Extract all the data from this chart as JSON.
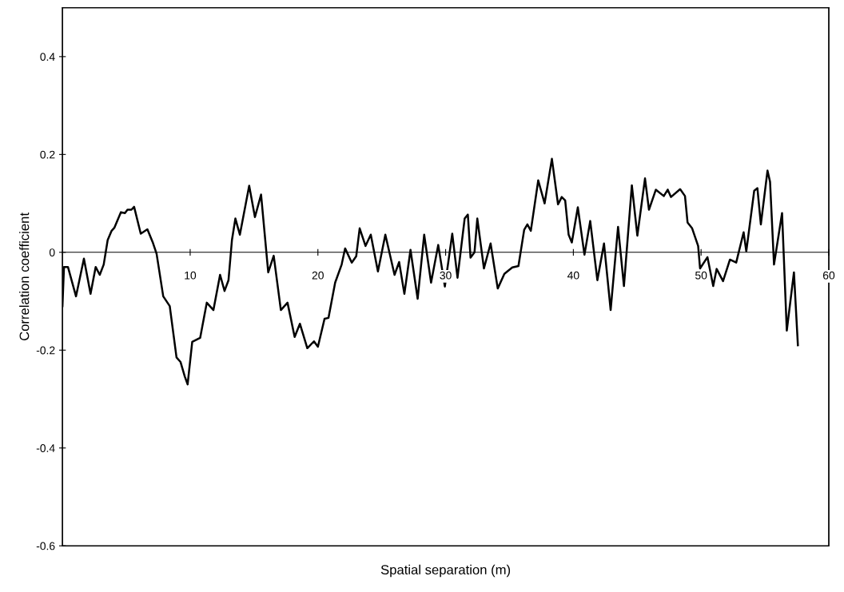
{
  "chart_data": {
    "type": "line",
    "xlabel": "Spatial separation (m)",
    "ylabel": "Correlation coefficient",
    "xlim": [
      0,
      60
    ],
    "ylim": [
      -0.6,
      0.5
    ],
    "xticks": [
      10,
      20,
      30,
      40,
      50,
      60
    ],
    "yticks": [
      -0.6,
      -0.4,
      -0.2,
      0,
      0.2,
      0.4
    ],
    "grid": false,
    "legend": false,
    "marker": "none",
    "line_style": "solid",
    "series": [
      {
        "color": "#000000",
        "x": [
          0.0,
          0.12,
          0.43,
          1.06,
          1.68,
          2.2,
          2.6,
          2.92,
          3.23,
          3.54,
          3.85,
          4.06,
          4.58,
          4.89,
          5.09,
          5.4,
          5.61,
          6.13,
          6.65,
          7.06,
          7.37,
          7.89,
          8.4,
          8.93,
          9.24,
          9.58,
          9.8,
          10.16,
          10.78,
          11.3,
          11.82,
          12.34,
          12.69,
          13.0,
          13.27,
          13.54,
          13.89,
          14.62,
          15.07,
          15.55,
          16.11,
          16.54,
          17.1,
          17.62,
          18.18,
          18.59,
          19.17,
          19.69,
          20.0,
          20.52,
          20.83,
          21.35,
          21.86,
          22.13,
          22.65,
          23.0,
          23.27,
          23.73,
          24.14,
          24.7,
          25.28,
          26.0,
          26.36,
          26.77,
          27.25,
          27.81,
          28.32,
          28.86,
          29.42,
          29.94,
          30.52,
          30.93,
          31.49,
          31.74,
          31.95,
          32.26,
          32.48,
          33.0,
          33.52,
          34.08,
          34.6,
          35.22,
          35.7,
          36.15,
          36.4,
          36.67,
          37.25,
          37.75,
          38.32,
          38.8,
          39.09,
          39.36,
          39.63,
          39.88,
          40.35,
          40.87,
          41.32,
          41.88,
          42.4,
          42.92,
          43.5,
          43.96,
          44.58,
          45.01,
          45.61,
          45.92,
          46.46,
          47.08,
          47.39,
          47.64,
          48.36,
          48.74,
          48.94,
          49.3,
          49.77,
          49.92,
          50.5,
          50.95,
          51.22,
          51.72,
          52.26,
          52.75,
          53.33,
          53.54,
          54.16,
          54.41,
          54.68,
          55.2,
          55.4,
          55.71,
          56.34,
          56.71,
          57.27,
          57.58
        ],
        "values": [
          -0.11,
          -0.03,
          -0.03,
          -0.09,
          -0.013,
          -0.085,
          -0.03,
          -0.046,
          -0.025,
          0.025,
          0.044,
          0.05,
          0.082,
          0.08,
          0.087,
          0.087,
          0.093,
          0.038,
          0.047,
          0.021,
          -0.003,
          -0.09,
          -0.11,
          -0.215,
          -0.224,
          -0.254,
          -0.27,
          -0.183,
          -0.175,
          -0.103,
          -0.118,
          -0.046,
          -0.079,
          -0.057,
          0.025,
          0.069,
          0.036,
          0.136,
          0.072,
          0.118,
          -0.041,
          -0.007,
          -0.118,
          -0.103,
          -0.173,
          -0.146,
          -0.196,
          -0.182,
          -0.193,
          -0.136,
          -0.134,
          -0.062,
          -0.025,
          0.008,
          -0.021,
          -0.008,
          0.049,
          0.013,
          0.036,
          -0.039,
          0.036,
          -0.046,
          -0.02,
          -0.085,
          0.005,
          -0.095,
          0.036,
          -0.062,
          0.015,
          -0.07,
          0.038,
          -0.052,
          0.069,
          0.077,
          -0.011,
          0.0,
          0.069,
          -0.033,
          0.018,
          -0.074,
          -0.044,
          -0.031,
          -0.028,
          0.046,
          0.057,
          0.044,
          0.147,
          0.1,
          0.191,
          0.098,
          0.113,
          0.106,
          0.036,
          0.02,
          0.092,
          -0.005,
          0.064,
          -0.057,
          0.018,
          -0.118,
          0.052,
          -0.069,
          0.137,
          0.034,
          0.151,
          0.087,
          0.128,
          0.115,
          0.128,
          0.113,
          0.129,
          0.115,
          0.061,
          0.049,
          0.013,
          -0.033,
          -0.01,
          -0.069,
          -0.034,
          -0.059,
          -0.015,
          -0.021,
          0.041,
          0.002,
          0.126,
          0.131,
          0.057,
          0.167,
          0.144,
          -0.025,
          0.08,
          -0.16,
          -0.041,
          -0.19
        ]
      }
    ]
  }
}
